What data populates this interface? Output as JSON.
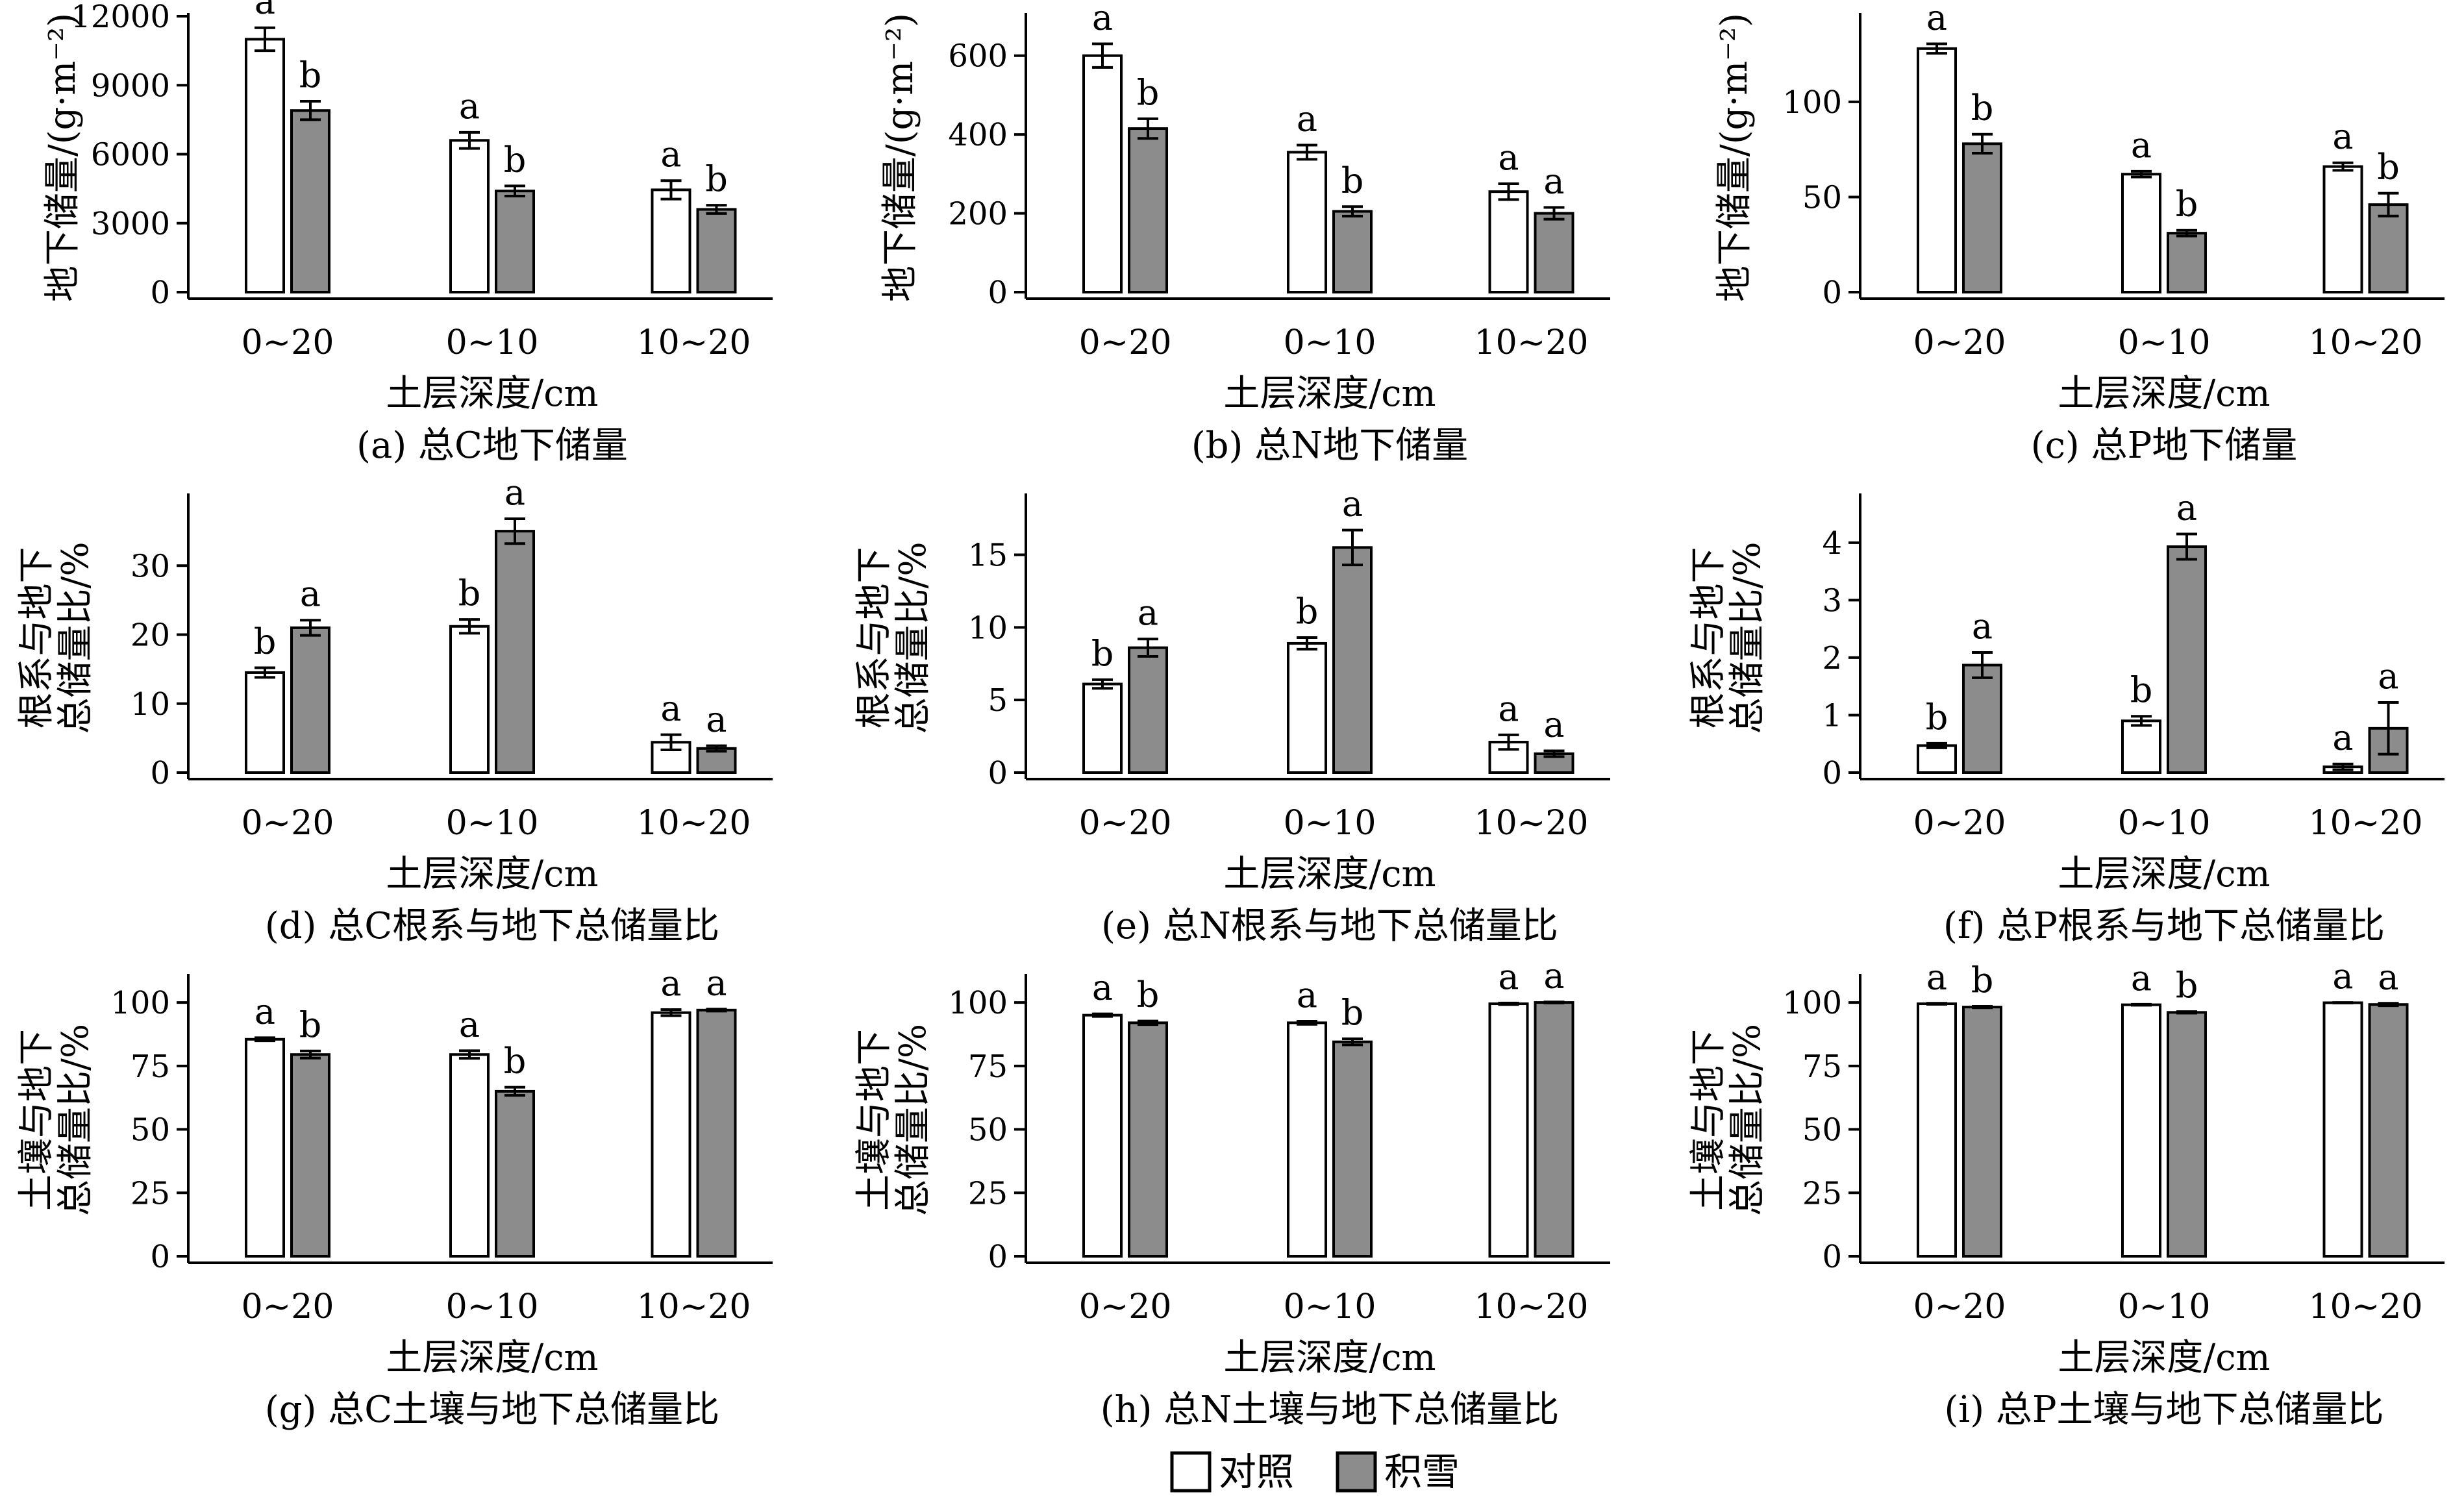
{
  "legend": {
    "items": [
      {
        "label": "对照",
        "color": "#ffffff"
      },
      {
        "label": "积雪",
        "color": "#8c8c8c"
      }
    ]
  },
  "colors": {
    "control": "#ffffff",
    "snow": "#8c8c8c",
    "stroke": "#000000"
  },
  "chart_data": [
    {
      "type": "bar",
      "caption": "(a) 总C地下储量",
      "xlabel": "土层深度/cm",
      "ylabel": [
        "地下储量/(g·m⁻²)"
      ],
      "categories": [
        "0~20",
        "0~10",
        "10~20"
      ],
      "ylim": [
        0,
        12000
      ],
      "yticks": [
        0,
        3000,
        6000,
        9000,
        12000
      ],
      "series": [
        {
          "name": "对照",
          "values": [
            11000,
            6600,
            4450
          ],
          "errors": [
            500,
            350,
            400
          ],
          "letters": [
            "a",
            "a",
            "a"
          ]
        },
        {
          "name": "积雪",
          "values": [
            7900,
            4400,
            3600
          ],
          "errors": [
            400,
            220,
            180
          ],
          "letters": [
            "b",
            "b",
            "b"
          ]
        }
      ]
    },
    {
      "type": "bar",
      "caption": "(b) 总N地下储量",
      "xlabel": "土层深度/cm",
      "ylabel": [
        "地下储量/(g·m⁻²)"
      ],
      "categories": [
        "0~20",
        "0~10",
        "10~20"
      ],
      "ylim": [
        0,
        700
      ],
      "yticks": [
        0,
        200,
        400,
        600
      ],
      "series": [
        {
          "name": "对照",
          "values": [
            600,
            355,
            255
          ],
          "errors": [
            30,
            18,
            20
          ],
          "letters": [
            "a",
            "a",
            "a"
          ]
        },
        {
          "name": "积雪",
          "values": [
            415,
            205,
            200
          ],
          "errors": [
            25,
            12,
            15
          ],
          "letters": [
            "b",
            "b",
            "a"
          ]
        }
      ]
    },
    {
      "type": "bar",
      "caption": "(c) 总P地下储量",
      "xlabel": "土层深度/cm",
      "ylabel": [
        "地下储量/(g·m⁻²)"
      ],
      "categories": [
        "0~20",
        "0~10",
        "10~20"
      ],
      "ylim": [
        0,
        145
      ],
      "yticks": [
        0,
        50,
        100
      ],
      "series": [
        {
          "name": "对照",
          "values": [
            128,
            62,
            66
          ],
          "errors": [
            2.5,
            1.5,
            2
          ],
          "letters": [
            "a",
            "a",
            "a"
          ]
        },
        {
          "name": "积雪",
          "values": [
            78,
            31,
            46
          ],
          "errors": [
            5,
            1.5,
            6
          ],
          "letters": [
            "b",
            "b",
            "b"
          ]
        }
      ]
    },
    {
      "type": "bar",
      "caption": "(d) 总C根系与地下总储量比",
      "xlabel": "土层深度/cm",
      "ylabel": [
        "根系与地下",
        "总储量比/%"
      ],
      "categories": [
        "0~20",
        "0~10",
        "10~20"
      ],
      "ylim": [
        0,
        40
      ],
      "yticks": [
        0,
        10,
        20,
        30
      ],
      "series": [
        {
          "name": "对照",
          "values": [
            14.5,
            21.2,
            4.4
          ],
          "errors": [
            0.7,
            1.0,
            1.1
          ],
          "letters": [
            "b",
            "b",
            "a"
          ]
        },
        {
          "name": "积雪",
          "values": [
            21.0,
            35.0,
            3.5
          ],
          "errors": [
            1.1,
            1.8,
            0.4
          ],
          "letters": [
            "a",
            "a",
            "a"
          ]
        }
      ]
    },
    {
      "type": "bar",
      "caption": "(e) 总N根系与地下总储量比",
      "xlabel": "土层深度/cm",
      "ylabel": [
        "根系与地下",
        "总储量比/%"
      ],
      "categories": [
        "0~20",
        "0~10",
        "10~20"
      ],
      "ylim": [
        0,
        19
      ],
      "yticks": [
        0,
        5,
        10,
        15
      ],
      "series": [
        {
          "name": "对照",
          "values": [
            6.1,
            8.9,
            2.1
          ],
          "errors": [
            0.3,
            0.4,
            0.5
          ],
          "letters": [
            "b",
            "b",
            "a"
          ]
        },
        {
          "name": "积雪",
          "values": [
            8.6,
            15.5,
            1.3
          ],
          "errors": [
            0.6,
            1.2,
            0.2
          ],
          "letters": [
            "a",
            "a",
            "a"
          ]
        }
      ]
    },
    {
      "type": "bar",
      "caption": "(f) 总P根系与地下总储量比",
      "xlabel": "土层深度/cm",
      "ylabel": [
        "根系与地下",
        "总储量比/%"
      ],
      "categories": [
        "0~20",
        "0~10",
        "10~20"
      ],
      "ylim": [
        0,
        4.8
      ],
      "yticks": [
        0,
        1,
        2,
        3,
        4
      ],
      "series": [
        {
          "name": "对照",
          "values": [
            0.47,
            0.9,
            0.1
          ],
          "errors": [
            0.04,
            0.08,
            0.05
          ],
          "letters": [
            "b",
            "b",
            "a"
          ]
        },
        {
          "name": "积雪",
          "values": [
            1.87,
            3.93,
            0.77
          ],
          "errors": [
            0.22,
            0.22,
            0.45
          ],
          "letters": [
            "a",
            "a",
            "a"
          ]
        }
      ]
    },
    {
      "type": "bar",
      "caption": "(g) 总C土壤与地下总储量比",
      "xlabel": "土层深度/cm",
      "ylabel": [
        "土壤与地下",
        "总储量比/%"
      ],
      "categories": [
        "0~20",
        "0~10",
        "10~20"
      ],
      "ylim": [
        0,
        110
      ],
      "yticks": [
        0,
        25,
        50,
        75,
        100
      ],
      "series": [
        {
          "name": "对照",
          "values": [
            85.5,
            79.5,
            96
          ],
          "errors": [
            0.6,
            1.5,
            1.2
          ],
          "letters": [
            "a",
            "a",
            "a"
          ]
        },
        {
          "name": "积雪",
          "values": [
            79.5,
            65,
            97
          ],
          "errors": [
            1.4,
            1.6,
            0.4
          ],
          "letters": [
            "b",
            "b",
            "a"
          ]
        }
      ]
    },
    {
      "type": "bar",
      "caption": "(h) 总N土壤与地下总储量比",
      "xlabel": "土层深度/cm",
      "ylabel": [
        "土壤与地下",
        "总储量比/%"
      ],
      "categories": [
        "0~20",
        "0~10",
        "10~20"
      ],
      "ylim": [
        0,
        110
      ],
      "yticks": [
        0,
        25,
        50,
        75,
        100
      ],
      "series": [
        {
          "name": "对照",
          "values": [
            95,
            92,
            99.5
          ],
          "errors": [
            0.5,
            0.6,
            0.3
          ],
          "letters": [
            "a",
            "a",
            "a"
          ]
        },
        {
          "name": "积雪",
          "values": [
            92,
            84.5,
            100
          ],
          "errors": [
            0.7,
            1.2,
            0.2
          ],
          "letters": [
            "b",
            "b",
            "a"
          ]
        }
      ]
    },
    {
      "type": "bar",
      "caption": "(i) 总P土壤与地下总储量比",
      "xlabel": "土层深度/cm",
      "ylabel": [
        "土壤与地下",
        "总储量比/%"
      ],
      "categories": [
        "0~20",
        "0~10",
        "10~20"
      ],
      "ylim": [
        0,
        110
      ],
      "yticks": [
        0,
        25,
        50,
        75,
        100
      ],
      "series": [
        {
          "name": "对照",
          "values": [
            99.5,
            99.1,
            99.9
          ],
          "errors": [
            0.2,
            0.2,
            0.1
          ],
          "letters": [
            "a",
            "a",
            "a"
          ]
        },
        {
          "name": "积雪",
          "values": [
            98.2,
            96.1,
            99.2
          ],
          "errors": [
            0.3,
            0.3,
            0.5
          ],
          "letters": [
            "b",
            "b",
            "a"
          ]
        }
      ]
    }
  ]
}
